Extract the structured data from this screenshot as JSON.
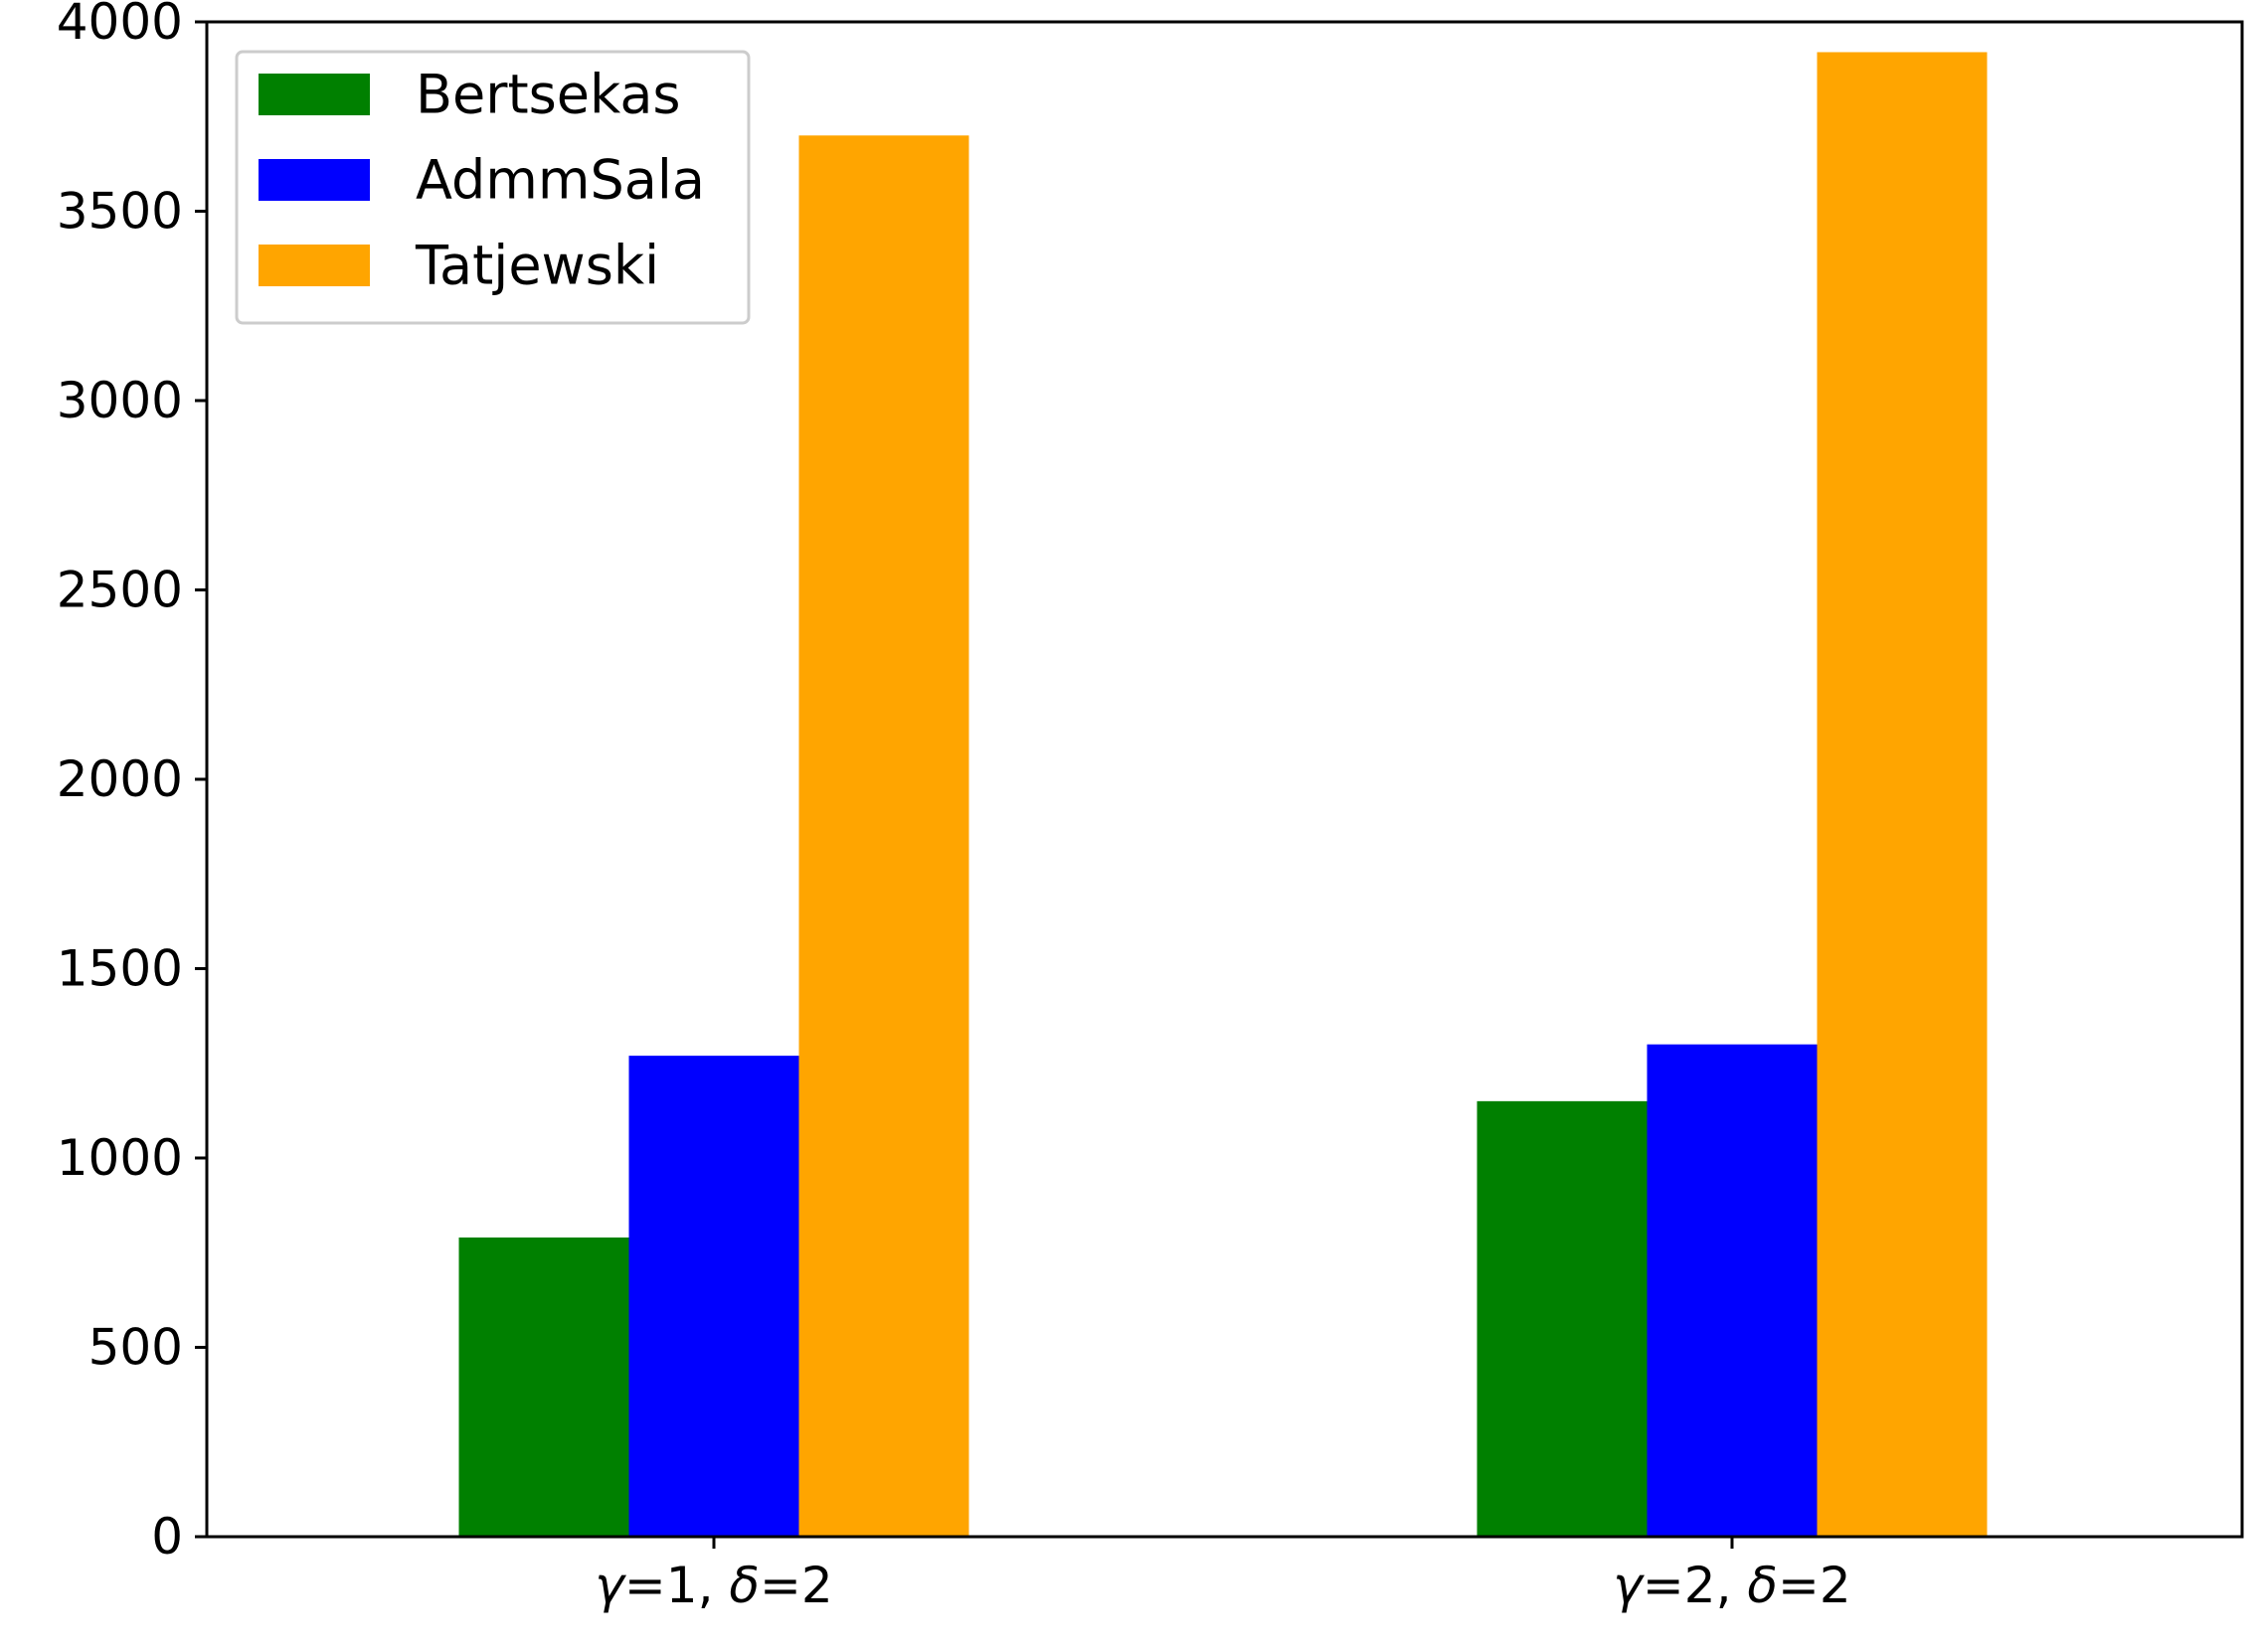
{
  "chart_data": {
    "type": "bar",
    "title": "",
    "xlabel": "",
    "ylabel": "",
    "categories": [
      {
        "parts": [
          {
            "text": "γ",
            "italic": true
          },
          {
            "text": "=1, ",
            "italic": false
          },
          {
            "text": "δ",
            "italic": true
          },
          {
            "text": "=2",
            "italic": false
          }
        ]
      },
      {
        "parts": [
          {
            "text": "γ",
            "italic": true
          },
          {
            "text": "=2, ",
            "italic": false
          },
          {
            "text": "δ",
            "italic": true
          },
          {
            "text": "=2",
            "italic": false
          }
        ]
      }
    ],
    "series": [
      {
        "name": "Bertsekas",
        "color": "#008000",
        "values": [
          790,
          1150
        ]
      },
      {
        "name": "AdmmSala",
        "color": "#0000ff",
        "values": [
          1270,
          1300
        ]
      },
      {
        "name": "Tatjewski",
        "color": "#ffa500",
        "values": [
          3700,
          3920
        ]
      }
    ],
    "ylim": [
      0,
      4000
    ],
    "yticks": [
      0,
      500,
      1000,
      1500,
      2000,
      2500,
      3000,
      3500,
      4000
    ],
    "grid": false,
    "legend_position": "top-left"
  }
}
